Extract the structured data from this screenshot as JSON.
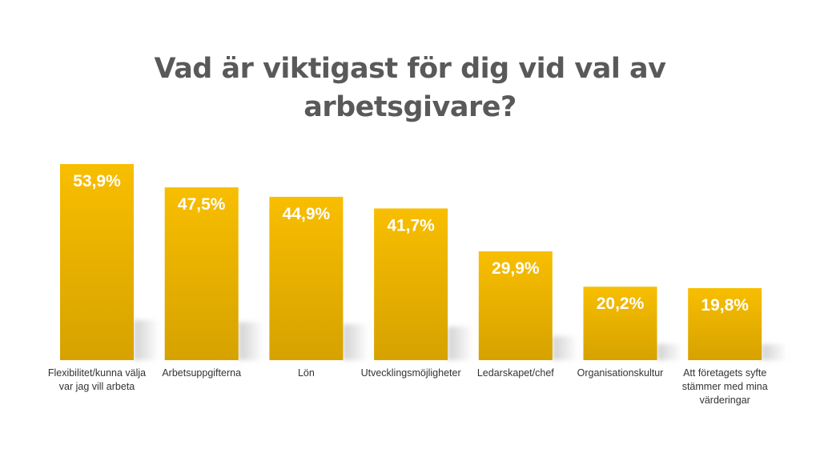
{
  "chart_data": {
    "type": "bar",
    "title_lines": [
      "Vad är viktigast för dig vid val av",
      "arbetsgivare?"
    ],
    "categories": [
      "Flexibilitet/kunna välja var jag vill arbeta",
      "Arbetsuppgifterna",
      "Lön",
      "Utvecklingsmöjligheter",
      "Ledarskapet/chef",
      "Organisationskultur",
      "Att företagets syfte stämmer med mina värderingar"
    ],
    "category_lines": [
      [
        "Flexibilitet/kunna välja",
        "var jag vill arbeta"
      ],
      [
        "Arbetsuppgifterna"
      ],
      [
        "Lön"
      ],
      [
        "Utvecklingsmöjligheter"
      ],
      [
        "Ledarskapet/chef"
      ],
      [
        "Organisationskultur"
      ],
      [
        "Att företagets syfte",
        "stämmer med mina",
        "värderingar"
      ]
    ],
    "values": [
      53.9,
      47.5,
      44.9,
      41.7,
      29.9,
      20.2,
      19.8
    ],
    "value_labels": [
      "53,9%",
      "47,5%",
      "44,9%",
      "41,7%",
      "29,9%",
      "20,2%",
      "19,8%"
    ],
    "unit": "%",
    "ylim": [
      0,
      53.9
    ],
    "grid": false,
    "legend": "none",
    "colors": {
      "bar_top": "#F8BE00",
      "bar_bottom": "#D6A200",
      "value_label": "#FFFFFF",
      "title": "#595959",
      "category_label": "#333333",
      "shadow": "#CFCFCF"
    }
  }
}
